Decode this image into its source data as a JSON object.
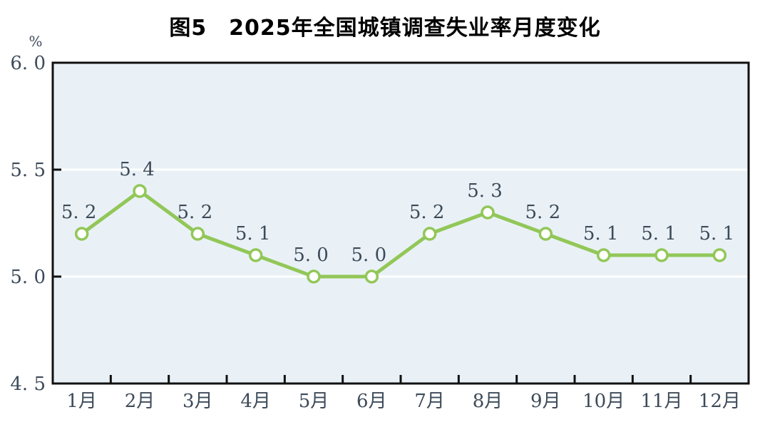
{
  "figure": {
    "y_unit_label": "%"
  },
  "chart_data": {
    "type": "line",
    "title": "图5　2025年全国城镇调查失业率月度变化",
    "categories": [
      "1月",
      "2月",
      "3月",
      "4月",
      "5月",
      "6月",
      "7月",
      "8月",
      "9月",
      "10月",
      "11月",
      "12月"
    ],
    "series": [
      {
        "name": "全国城镇调查失业率",
        "values": [
          5.2,
          5.4,
          5.2,
          5.1,
          5.0,
          5.0,
          5.2,
          5.3,
          5.2,
          5.1,
          5.1,
          5.1
        ]
      }
    ],
    "point_labels": [
      "5. 2",
      "5. 4",
      "5. 2",
      "5. 1",
      "5. 0",
      "5. 0",
      "5. 2",
      "5. 3",
      "5. 2",
      "5. 1",
      "5. 1",
      "5. 1"
    ],
    "xlabel": "",
    "ylabel": "%",
    "ylim": [
      4.5,
      6.0
    ],
    "y_ticks": [
      {
        "value": 6.0,
        "label": "6. 0"
      },
      {
        "value": 5.5,
        "label": "5. 5"
      },
      {
        "value": 5.0,
        "label": "5. 0"
      },
      {
        "value": 4.5,
        "label": "4. 5"
      }
    ],
    "gridline_values": [
      5.5,
      5.0
    ],
    "grid": "horizontal-white-lines",
    "legend_position": "none",
    "colors": {
      "line": "#92c758",
      "marker_fill": "#ffffff",
      "marker_stroke": "#92c758",
      "plot_background": "#e9f1f6",
      "gridline": "#ffffff",
      "axis_frame": "#111111",
      "tick": "#111111",
      "value_text": "#3d4a59",
      "title_text": "#000000"
    }
  }
}
